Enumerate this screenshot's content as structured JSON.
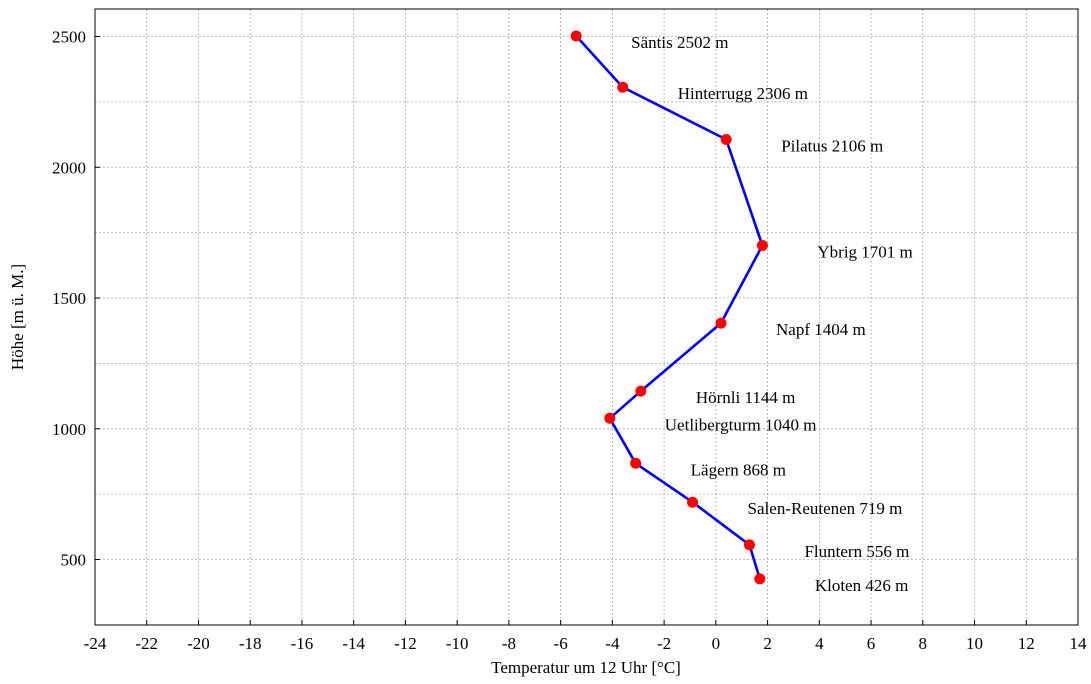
{
  "chart_data": {
    "type": "line",
    "xlabel": "Temperatur um 12 Uhr [°C]",
    "ylabel": "Höhe [m ü. M.]",
    "xlim": [
      -24,
      14
    ],
    "ylim": [
      250,
      2600
    ],
    "x_ticks": [
      "-24",
      "-22",
      "-20",
      "-18",
      "-16",
      "-14",
      "-12",
      "-10",
      "-8",
      "-6",
      "-4",
      "-2",
      "0",
      "2",
      "4",
      "6",
      "8",
      "10",
      "12",
      "14"
    ],
    "y_ticks": [
      "500",
      "1000",
      "1500",
      "2000",
      "2500"
    ],
    "grid": true,
    "series": [
      {
        "line_color": "#0000ff",
        "marker_color": "#ff0000",
        "points": [
          {
            "label": "Säntis 2502 m",
            "x": -5.4,
            "y": 2502
          },
          {
            "label": "Hinterrugg 2306 m",
            "x": -3.6,
            "y": 2306
          },
          {
            "label": "Pilatus 2106 m",
            "x": 0.4,
            "y": 2106
          },
          {
            "label": "Ybrig 1701 m",
            "x": 1.8,
            "y": 1701
          },
          {
            "label": "Napf 1404 m",
            "x": 0.2,
            "y": 1404
          },
          {
            "label": "Hörnli 1144 m",
            "x": -2.9,
            "y": 1144
          },
          {
            "label": "Uetlibergturm 1040 m",
            "x": -4.1,
            "y": 1040
          },
          {
            "label": "Lägern 868 m",
            "x": -3.1,
            "y": 868
          },
          {
            "label": "Salen-Reutenen 719 m",
            "x": -0.9,
            "y": 719
          },
          {
            "label": "Fluntern 556 m",
            "x": 1.3,
            "y": 556
          },
          {
            "label": "Kloten 426 m",
            "x": 1.7,
            "y": 426
          }
        ]
      }
    ]
  }
}
